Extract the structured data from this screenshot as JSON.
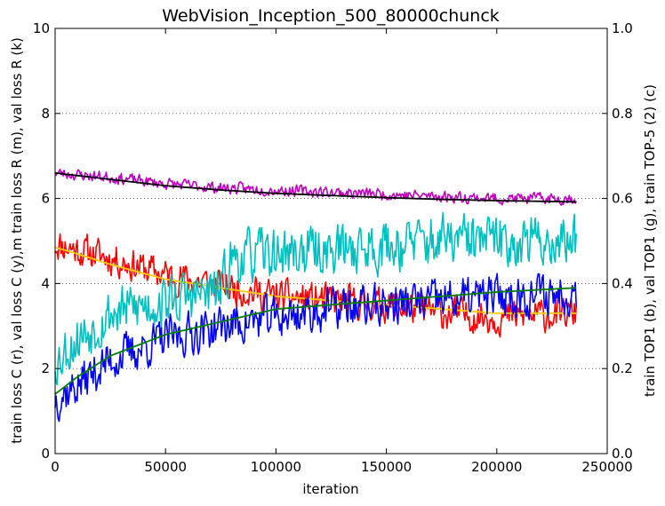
{
  "chart_data": {
    "type": "line",
    "title": "WebVision_Inception_500_80000chunck",
    "xlabel": "iteration",
    "ylabel_left": "train loss C (r), val loss C (y),m train loss R (m), val loss R (k)",
    "ylabel_right": "train TOP1 (b), val TOP1 (g), train TOP-5 (2) (c)",
    "xlim": [
      0,
      250000
    ],
    "ylim_left": [
      0,
      10
    ],
    "ylim_right": [
      0.0,
      1.0
    ],
    "xticks": [
      0,
      50000,
      100000,
      150000,
      200000,
      250000
    ],
    "xtick_labels": [
      "0",
      "50000",
      "100000",
      "150000",
      "200000",
      "250000"
    ],
    "yticks_left": [
      0,
      2,
      4,
      6,
      8,
      10
    ],
    "ytick_labels_left": [
      "0",
      "2",
      "4",
      "6",
      "8",
      "10"
    ],
    "yticks_right": [
      0.0,
      0.2,
      0.4,
      0.6,
      0.8,
      1.0
    ],
    "ytick_labels_right": [
      "0.0",
      "0.2",
      "0.4",
      "0.6",
      "0.8",
      "1.0"
    ],
    "grid": "horizontal-dotted",
    "series": [
      {
        "axis": "left",
        "color": "#ff0000",
        "noise": 0.35,
        "seed": 11,
        "x": [
          0,
          10000,
          25000,
          50000,
          75000,
          100000,
          125000,
          150000,
          175000,
          200000,
          236000
        ],
        "values": [
          4.95,
          4.8,
          4.6,
          4.2,
          3.95,
          3.7,
          3.6,
          3.5,
          3.3,
          3.2,
          3.3
        ]
      },
      {
        "axis": "left",
        "color": "#ffcc00",
        "x": [
          0,
          10000,
          25000,
          50000,
          75000,
          100000,
          125000,
          150000,
          175000,
          200000,
          236000
        ],
        "values": [
          4.85,
          4.7,
          4.45,
          4.1,
          3.9,
          3.7,
          3.6,
          3.5,
          3.4,
          3.3,
          3.3
        ]
      },
      {
        "axis": "left",
        "color": "#bf00bf",
        "noise": 0.12,
        "seed": 23,
        "x": [
          0,
          25000,
          50000,
          75000,
          100000,
          125000,
          150000,
          175000,
          200000,
          236000
        ],
        "values": [
          6.6,
          6.5,
          6.35,
          6.25,
          6.2,
          6.15,
          6.1,
          6.05,
          6.0,
          6.0
        ]
      },
      {
        "axis": "left",
        "color": "#000000",
        "x": [
          0,
          25000,
          50000,
          75000,
          100000,
          125000,
          150000,
          175000,
          200000,
          236000
        ],
        "values": [
          6.6,
          6.45,
          6.3,
          6.2,
          6.12,
          6.07,
          6.02,
          5.98,
          5.95,
          5.92
        ]
      },
      {
        "axis": "right",
        "color": "#0000ff",
        "noise": 0.045,
        "seed": 37,
        "x": [
          0,
          10000,
          25000,
          50000,
          75000,
          100000,
          125000,
          150000,
          175000,
          200000,
          236000
        ],
        "values": [
          0.13,
          0.16,
          0.22,
          0.27,
          0.3,
          0.32,
          0.34,
          0.35,
          0.36,
          0.37,
          0.38
        ]
      },
      {
        "axis": "right",
        "color": "#008000",
        "x": [
          0,
          10000,
          25000,
          50000,
          75000,
          100000,
          125000,
          150000,
          175000,
          200000,
          236000
        ],
        "values": [
          0.14,
          0.18,
          0.23,
          0.28,
          0.31,
          0.34,
          0.35,
          0.36,
          0.37,
          0.38,
          0.39
        ]
      },
      {
        "axis": "right",
        "color": "#00bfbf",
        "noise": 0.055,
        "seed": 53,
        "x": [
          0,
          10000,
          25000,
          50000,
          75000,
          80000,
          100000,
          125000,
          150000,
          175000,
          200000,
          236000
        ],
        "values": [
          0.22,
          0.27,
          0.33,
          0.36,
          0.38,
          0.46,
          0.47,
          0.48,
          0.49,
          0.5,
          0.5,
          0.5
        ]
      }
    ]
  }
}
